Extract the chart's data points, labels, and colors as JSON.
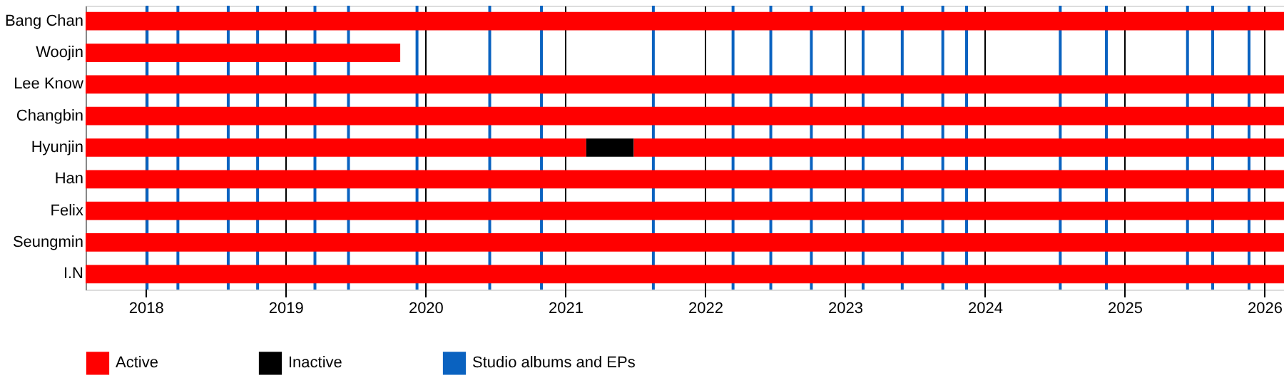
{
  "chart_data": {
    "type": "bar",
    "orientation": "horizontal",
    "categories": [
      "Bang Chan",
      "Woojin",
      "Lee Know",
      "Changbin",
      "Hyunjin",
      "Han",
      "Felix",
      "Seungmin",
      "I.N"
    ],
    "series": [
      {
        "name": "Active",
        "color": "#ff0000",
        "base": [
          2017.57,
          2017.57,
          2017.57,
          2017.57,
          2017.57,
          2017.57,
          2017.57,
          2017.57,
          2017.57
        ],
        "values": [
          8.57,
          2.25,
          8.57,
          8.57,
          3.58,
          8.57,
          8.57,
          8.57,
          8.57
        ]
      },
      {
        "name": "Inactive",
        "color": "#000000",
        "base": [
          null,
          null,
          null,
          null,
          2021.15,
          null,
          null,
          null,
          null
        ],
        "values": [
          null,
          null,
          null,
          null,
          0.34,
          null,
          null,
          null,
          null
        ]
      },
      {
        "color": "#ff0000",
        "base": [
          null,
          null,
          null,
          null,
          2021.49,
          null,
          null,
          null,
          null
        ],
        "values": [
          null,
          null,
          null,
          null,
          4.65,
          null,
          null,
          null,
          null
        ]
      }
    ],
    "xlim": [
      2017.57,
      2026.14
    ],
    "xticks": [
      2018,
      2019,
      2020,
      2021,
      2022,
      2023,
      2024,
      2025,
      2026
    ],
    "grid": "x",
    "legend": "bottom left",
    "ref_lines": [
      {
        "axis": "x",
        "value": 2018.01,
        "label": "Studio albums and EPs",
        "color": "#0a62c0"
      },
      {
        "axis": "x",
        "value": 2018.23,
        "color": "#0a62c0"
      },
      {
        "axis": "x",
        "value": 2018.59,
        "color": "#0a62c0"
      },
      {
        "axis": "x",
        "value": 2018.8,
        "color": "#0a62c0"
      },
      {
        "axis": "x",
        "value": 2019.21,
        "color": "#0a62c0"
      },
      {
        "axis": "x",
        "value": 2019.45,
        "color": "#0a62c0"
      },
      {
        "axis": "x",
        "value": 2019.94,
        "color": "#0a62c0"
      },
      {
        "axis": "x",
        "value": 2020.46,
        "color": "#0a62c0"
      },
      {
        "axis": "x",
        "value": 2020.83,
        "color": "#0a62c0"
      },
      {
        "axis": "x",
        "value": 2021.63,
        "color": "#0a62c0"
      },
      {
        "axis": "x",
        "value": 2022.2,
        "color": "#0a62c0"
      },
      {
        "axis": "x",
        "value": 2022.47,
        "color": "#0a62c0"
      },
      {
        "axis": "x",
        "value": 2022.76,
        "color": "#0a62c0"
      },
      {
        "axis": "x",
        "value": 2023.13,
        "color": "#0a62c0"
      },
      {
        "axis": "x",
        "value": 2023.41,
        "color": "#0a62c0"
      },
      {
        "axis": "x",
        "value": 2023.7,
        "color": "#0a62c0"
      },
      {
        "axis": "x",
        "value": 2023.87,
        "color": "#0a62c0"
      },
      {
        "axis": "x",
        "value": 2024.54,
        "color": "#0a62c0"
      },
      {
        "axis": "x",
        "value": 2024.87,
        "color": "#0a62c0"
      },
      {
        "axis": "x",
        "value": 2025.45,
        "color": "#0a62c0"
      },
      {
        "axis": "x",
        "value": 2025.63,
        "color": "#0a62c0"
      },
      {
        "axis": "x",
        "value": 2025.89,
        "color": "#0a62c0"
      }
    ]
  }
}
